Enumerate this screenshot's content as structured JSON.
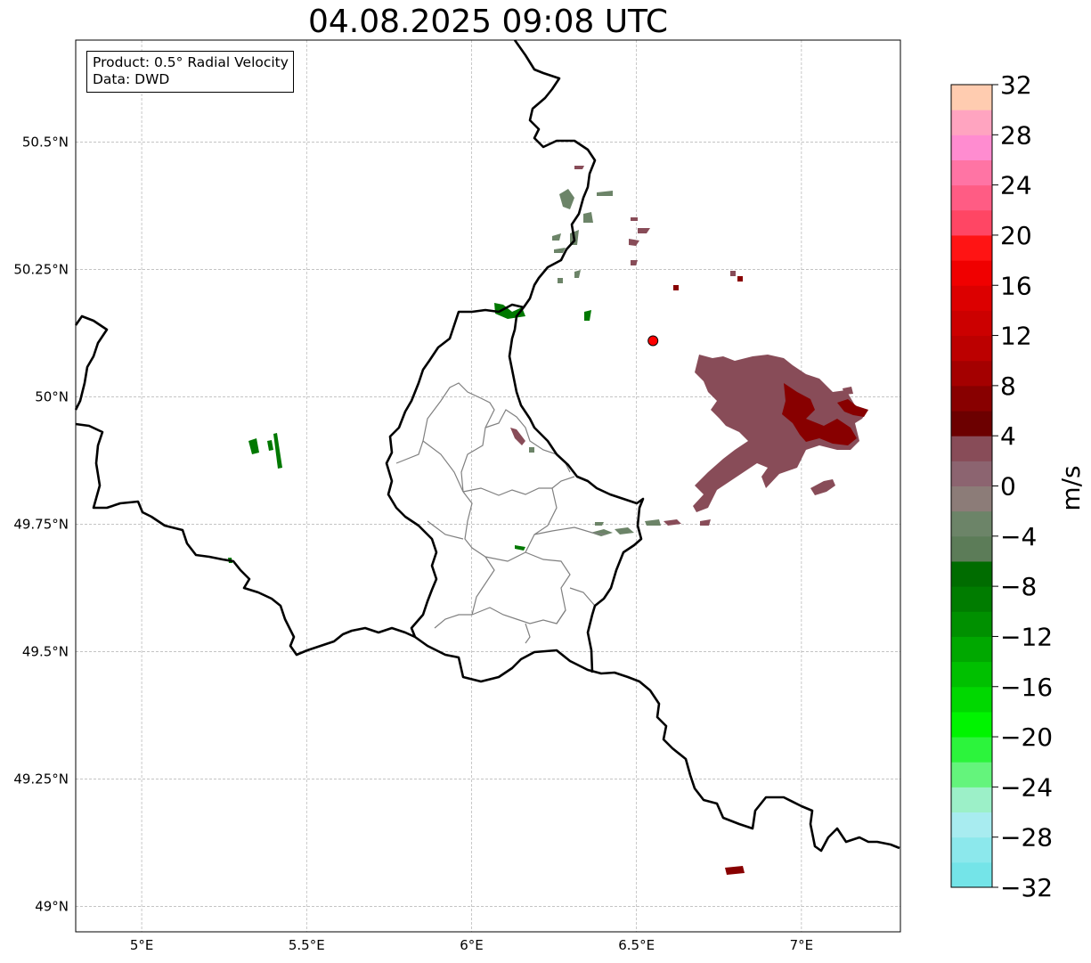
{
  "title": "04.08.2025 09:08 UTC",
  "info": {
    "product": "Product: 0.5° Radial Velocity",
    "data": "Data: DWD"
  },
  "axes": {
    "lon_ticks": [
      {
        "value": 5.0,
        "label": "5°E"
      },
      {
        "value": 5.5,
        "label": "5.5°E"
      },
      {
        "value": 6.0,
        "label": "6°E"
      },
      {
        "value": 6.5,
        "label": "6.5°E"
      },
      {
        "value": 7.0,
        "label": "7°E"
      }
    ],
    "lat_ticks": [
      {
        "value": 49.0,
        "label": "49°N"
      },
      {
        "value": 49.25,
        "label": "49.25°N"
      },
      {
        "value": 49.5,
        "label": "49.5°N"
      },
      {
        "value": 49.75,
        "label": "49.75°N"
      },
      {
        "value": 50.0,
        "label": "50°N"
      },
      {
        "value": 50.25,
        "label": "50.25°N"
      },
      {
        "value": 50.5,
        "label": "50.5°N"
      }
    ],
    "lon_range": [
      4.8,
      7.3
    ],
    "lat_range": [
      48.95,
      50.7
    ],
    "grid": true
  },
  "radar_site": {
    "lon": 6.55,
    "lat": 50.11,
    "color": "#ff0000"
  },
  "colorbar": {
    "label": "m/s",
    "range": [
      -32,
      32
    ],
    "ticks": [
      "32",
      "28",
      "24",
      "20",
      "16",
      "12",
      "8",
      "4",
      "0",
      "−4",
      "−8",
      "−12",
      "−16",
      "−20",
      "−24",
      "−28",
      "−32"
    ],
    "colors": [
      "#74e4e8",
      "#8ce8ec",
      "#a8ecf0",
      "#9cf0c8",
      "#64f47c",
      "#2cf43c",
      "#00f400",
      "#00d800",
      "#00c000",
      "#00a800",
      "#009000",
      "#007c00",
      "#006c00",
      "#5c7c58",
      "#6c8468",
      "#8c7c78",
      "#8c6470",
      "#884c58",
      "#6c0000",
      "#880000",
      "#a40000",
      "#bc0000",
      "#cc0000",
      "#dc0000",
      "#f00000",
      "#ff1414",
      "#ff4664",
      "#ff5c84",
      "#ff74a4",
      "#ff8cd0",
      "#ffa4c0",
      "#ffccb0"
    ]
  },
  "colors": {
    "approaching": "#007800",
    "approaching_light": "#6c8468",
    "receding": "#884c58",
    "receding_strong": "#880000"
  }
}
